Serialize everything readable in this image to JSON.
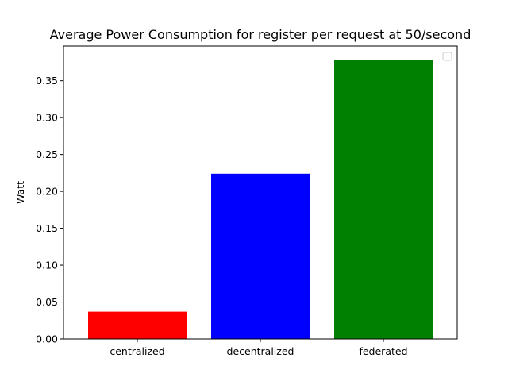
{
  "chart_data": {
    "type": "bar",
    "title": "Average Power Consumption for register per request at 50/second",
    "xlabel": "",
    "ylabel": "Watt",
    "categories": [
      "centralized",
      "decentralized",
      "federated"
    ],
    "values": [
      0.037,
      0.224,
      0.378
    ],
    "colors": [
      "#ff0000",
      "#0000ff",
      "#008000"
    ],
    "ylim": [
      0,
      0.397
    ],
    "yticks": [
      0.0,
      0.05,
      0.1,
      0.15,
      0.2,
      0.25,
      0.3,
      0.35
    ],
    "ytick_labels": [
      "0.00",
      "0.05",
      "0.10",
      "0.15",
      "0.20",
      "0.25",
      "0.30",
      "0.35"
    ],
    "grid": false,
    "legend": {
      "placement": "top-right",
      "entries": []
    }
  }
}
